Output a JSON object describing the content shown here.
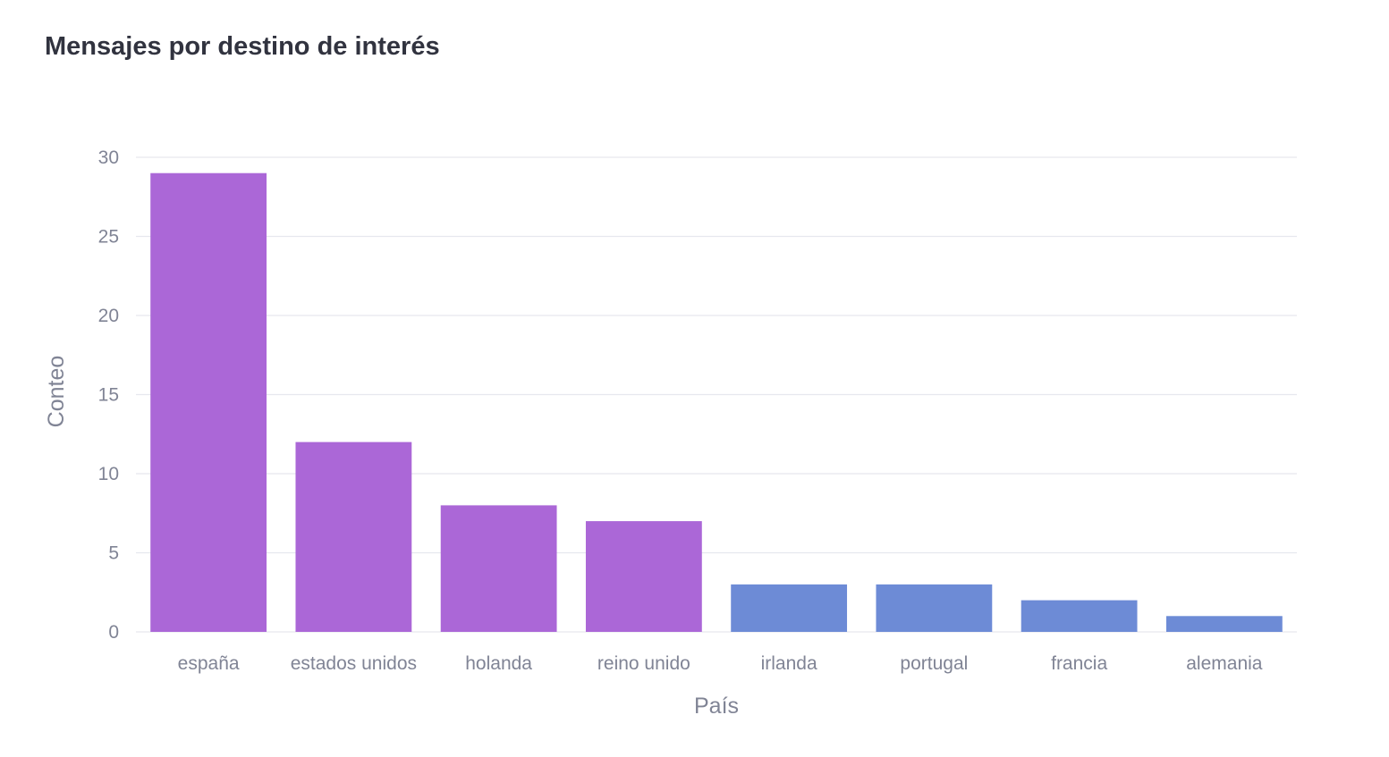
{
  "chart_data": {
    "type": "bar",
    "title": "Mensajes por destino de interés",
    "xlabel": "País",
    "ylabel": "Conteo",
    "categories": [
      "españa",
      "estados unidos",
      "holanda",
      "reino unido",
      "irlanda",
      "portugal",
      "francia",
      "alemania"
    ],
    "values": [
      29,
      12,
      8,
      7,
      3,
      3,
      2,
      1
    ],
    "bar_colors": [
      "#ab67d7",
      "#ab67d7",
      "#ab67d7",
      "#ab67d7",
      "#6d8bd6",
      "#6d8bd6",
      "#6d8bd6",
      "#6d8bd6"
    ],
    "ylim": [
      0,
      30
    ],
    "yticks": [
      0,
      5,
      10,
      15,
      20,
      25,
      30
    ],
    "grid": true,
    "legend": "none"
  },
  "colors": {
    "high": "#ab67d7",
    "low": "#6d8bd6",
    "grid": "#e6e8ee",
    "axis_text": "#808495",
    "title": "#31333f"
  }
}
